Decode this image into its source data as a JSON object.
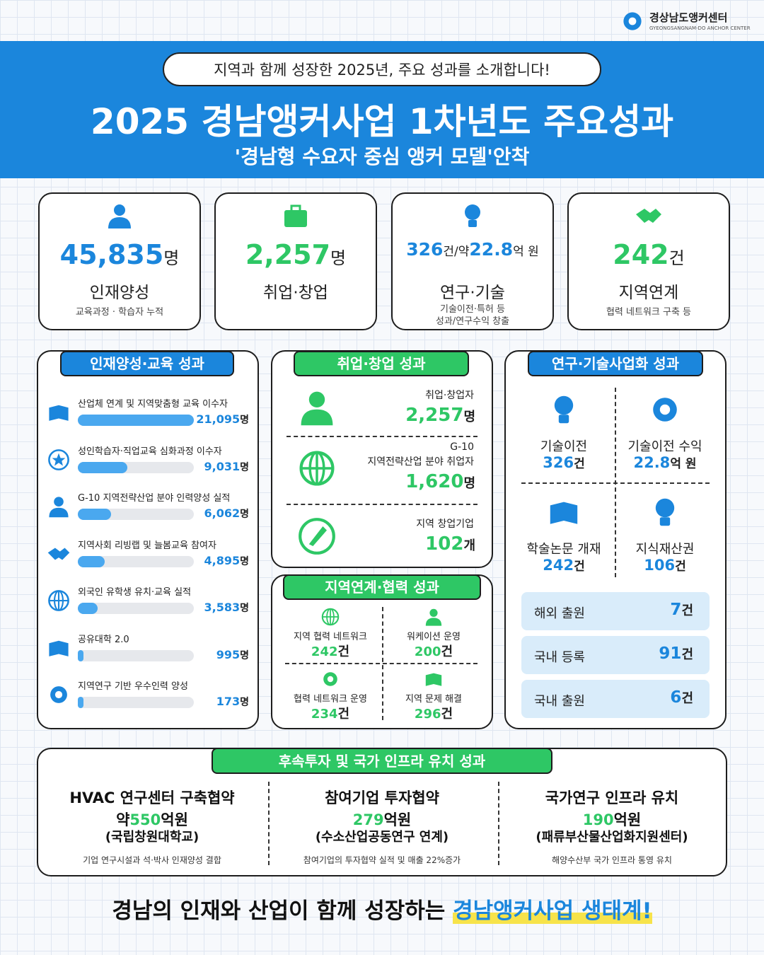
{
  "logo": {
    "name": "경상남도앵커센터",
    "sub": "GYEONGSANGNAM-DO ANCHOR CENTER"
  },
  "header": {
    "pill": "지역과 함께 성장한 2025년, 주요 성과를 소개합니다!",
    "title": "2025 경남앵커사업 1차년도 주요성과",
    "subtitle": "'경남형 수요자 중심 앵커 모델'안착"
  },
  "kpis": [
    {
      "value": "45,835",
      "unit": "명",
      "label": "인재양성",
      "desc_lines": [
        "교육과정 · 학습자 누적"
      ]
    },
    {
      "value": "2,257",
      "unit": "명",
      "label": "취업·창업",
      "desc_lines": []
    },
    {
      "value": "326",
      "unit": "건",
      "sep": "/약",
      "value2": "22.8",
      "unit2": "억 원",
      "label": "연구·기술",
      "desc_lines": [
        "기술이전·특허 등",
        "성과/연구수익 창출"
      ]
    },
    {
      "value": "242",
      "unit": "건",
      "label": "지역연계",
      "desc_lines": [
        "협력 네트워크 구축 등"
      ]
    }
  ],
  "education": {
    "title": "인재양성·교육 성과",
    "items": [
      {
        "label": "산업체 연계 및 지역맞춤형 교육 이수자",
        "value": 21095,
        "value_label": "21,095",
        "unit": "명"
      },
      {
        "label": "성인학습자·직업교육 심화과정 이수자",
        "value": 9031,
        "value_label": "9,031",
        "unit": "명"
      },
      {
        "label": "G-10 지역전략산업 분야 인력양성 실적",
        "value": 6062,
        "value_label": "6,062",
        "unit": "명"
      },
      {
        "label": "지역사회 리빙랩 및 늘봄교육 참여자",
        "value": 4895,
        "value_label": "4,895",
        "unit": "명"
      },
      {
        "label": "외국인 유학생 유치·교육 실적",
        "value": 3583,
        "value_label": "3,583",
        "unit": "명"
      },
      {
        "label": "공유대학 2.0",
        "value": 995,
        "value_label": "995",
        "unit": "명"
      },
      {
        "label": "지역연구 기반 우수인력 양성",
        "value": 173,
        "value_label": "173",
        "unit": "명"
      }
    ]
  },
  "employment": {
    "title": "취업·창업 성과",
    "items": [
      {
        "label_lines": [
          "취업·창업자"
        ],
        "value": "2,257",
        "unit": "명"
      },
      {
        "label_lines": [
          "G-10",
          "지역전략산업 분야 취업자"
        ],
        "value": "1,620",
        "unit": "명"
      },
      {
        "label_lines": [
          "지역 창업기업"
        ],
        "value": "102",
        "unit": "개"
      }
    ]
  },
  "regional": {
    "title": "지역연계·협력 성과",
    "items": [
      {
        "label": "지역 협력 네트워크",
        "value": "242",
        "unit": "건"
      },
      {
        "label": "워케이션 운영",
        "value": "200",
        "unit": "건"
      },
      {
        "label": "협력 네트워크 운영",
        "value": "234",
        "unit": "건"
      },
      {
        "label": "지역 문제 해결",
        "value": "296",
        "unit": "건"
      }
    ]
  },
  "research": {
    "title": "연구·기술사업화 성과",
    "items": [
      {
        "label": "기술이전",
        "value": "326",
        "unit": "건"
      },
      {
        "label": "기술이전 수익",
        "value": "22.8",
        "unit": "억 원"
      },
      {
        "label": "학술논문 개재",
        "value": "242",
        "unit": "건"
      },
      {
        "label": "지식재산권",
        "value": "106",
        "unit": "건"
      }
    ],
    "patents": [
      {
        "label": "해외 출원",
        "value": "7",
        "unit": "건"
      },
      {
        "label": "국내 등록",
        "value": "91",
        "unit": "건"
      },
      {
        "label": "국내 출원",
        "value": "6",
        "unit": "건"
      }
    ]
  },
  "invest": {
    "title": "후속투자 및 국가 인프라 유치 성과",
    "items": [
      {
        "title": "HVAC 연구센터 구축협약",
        "prefix": "약",
        "value": "550",
        "unit": "억원",
        "org": "(국립창원대학교)",
        "desc": "기업 연구시설과 석·박사 인재양성 결합"
      },
      {
        "title": "참여기업 투자협약",
        "value": "279",
        "unit": "억원",
        "org": "(수소산업공동연구 연계)",
        "desc": "참여기업의 투자협약 실적 및 매출 22%증가"
      },
      {
        "title": "국가연구 인프라 유치",
        "value": "190",
        "unit": "억원",
        "org": "(패류부산물산업화지원센터)",
        "desc": "해양수산부 국가 인프라 통영 유치"
      }
    ]
  },
  "footer": {
    "text": "경남의 인재와 산업이 함께 성장하는",
    "highlight": "경남앵커사업 생태계!"
  }
}
